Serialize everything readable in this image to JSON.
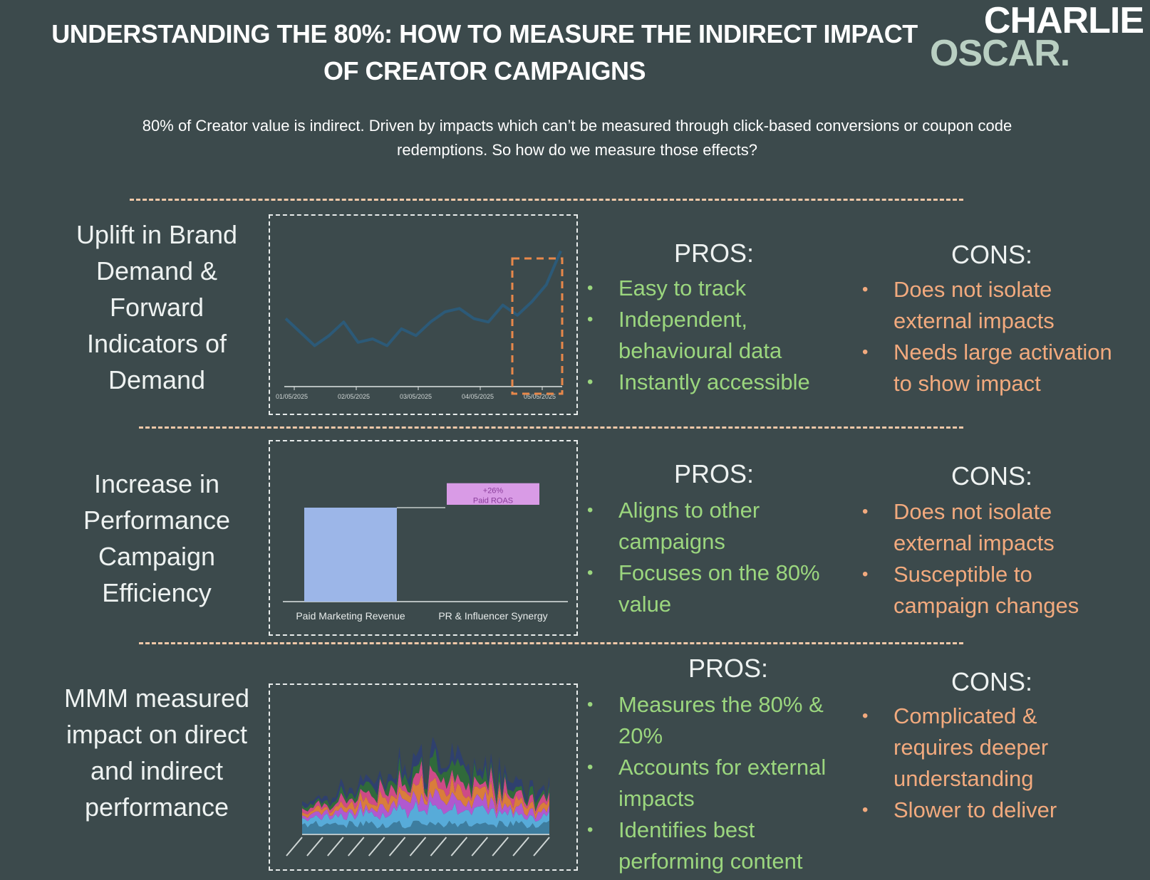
{
  "header": {
    "title_line1": "UNDERSTANDING THE 80%: HOW TO MEASURE THE INDIRECT IMPACT",
    "title_line2": "OF CREATOR CAMPAIGNS",
    "logo_line1": "CHARLIE",
    "logo_line2": "OSCAR."
  },
  "intro": {
    "line1": "80% of Creator value is indirect. Driven by impacts which can’t be measured through click-based conversions or coupon code",
    "line2": "redemptions. So how do we measure those effects?"
  },
  "colors": {
    "background": "#3c4a4c",
    "pros": "#9bd67e",
    "cons": "#f2aa7e",
    "divider": "#f0c8a8",
    "highlight": "#e8884a"
  },
  "sections": [
    {
      "title_lines": [
        "Uplift in Brand",
        "Demand &",
        "Forward",
        "Indicators of",
        "Demand"
      ],
      "pros_heading": "PROS:",
      "pros": [
        [
          "Easy to track"
        ],
        [
          "Independent,",
          "behavioural data"
        ],
        [
          "Instantly accessible"
        ]
      ],
      "cons_heading": "CONS:",
      "cons": [
        [
          "Does not isolate",
          "external impacts"
        ],
        [
          "Needs large activation",
          "to show impact"
        ]
      ]
    },
    {
      "title_lines": [
        "Increase in",
        "Performance",
        "Campaign",
        "Efficiency"
      ],
      "pros_heading": "PROS:",
      "pros": [
        [
          "Aligns to other",
          "campaigns"
        ],
        [
          "Focuses on the 80%",
          "value"
        ]
      ],
      "cons_heading": "CONS:",
      "cons": [
        [
          "Does not isolate",
          "external impacts"
        ],
        [
          "Susceptible to",
          "campaign changes"
        ]
      ]
    },
    {
      "title_lines": [
        "MMM measured",
        "impact on direct",
        "and indirect",
        "performance"
      ],
      "pros_heading": "PROS:",
      "pros": [
        [
          "Measures the 80% &",
          "20%"
        ],
        [
          "Accounts for external",
          "impacts"
        ],
        [
          "Identifies best",
          "performing content"
        ]
      ],
      "cons_heading": "CONS:",
      "cons": [
        [
          "Complicated &",
          "requires deeper",
          "understanding"
        ],
        [
          "Slower to deliver"
        ]
      ]
    }
  ],
  "chart_data": [
    {
      "type": "line",
      "x_tick_labels": [
        "01/05/2025",
        "02/05/2025",
        "03/05/2025",
        "04/05/2025",
        "05/05/2025"
      ],
      "values": [
        48,
        44,
        40,
        43,
        47,
        41,
        42,
        40,
        45,
        43,
        47,
        50,
        51,
        48,
        47,
        52,
        49,
        53,
        58,
        68
      ],
      "highlight": "last window (dashed orange box)"
    },
    {
      "type": "bar",
      "categories": [
        "Paid Marketing Revenue",
        "PR & Influencer Synergy"
      ],
      "values": [
        100,
        26
      ],
      "annotation_line1": "+26%",
      "annotation_line2": "Paid ROAS"
    },
    {
      "type": "area",
      "stacked": true,
      "series_colors": [
        "#3d7fa3",
        "#58b0e0",
        "#b65ad6",
        "#e2803a",
        "#d64a8a",
        "#2f6b3a",
        "#2e3f70"
      ],
      "tick_count": 13
    }
  ]
}
